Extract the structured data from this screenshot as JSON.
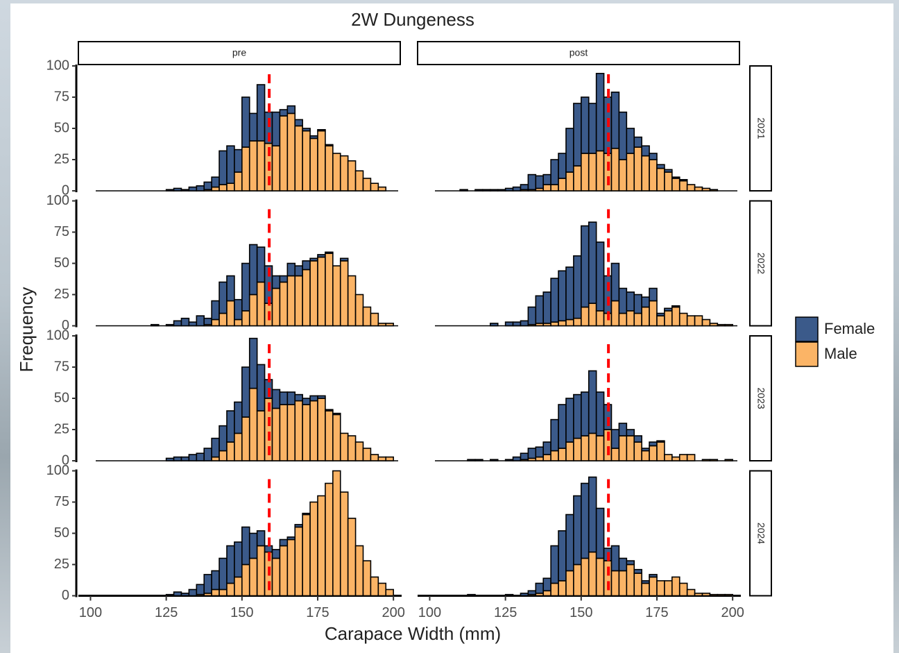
{
  "chart_data": {
    "type": "histogram",
    "title": "2W Dungeness",
    "x_label": "Carapace Width (mm)",
    "y_label": "Frequency",
    "bins": [
      100,
      102.5,
      105,
      107.5,
      110,
      112.5,
      115,
      117.5,
      120,
      122.5,
      125,
      127.5,
      130,
      132.5,
      135,
      137.5,
      140,
      142.5,
      145,
      147.5,
      150,
      152.5,
      155,
      157.5,
      160,
      162.5,
      165,
      167.5,
      170,
      172.5,
      175,
      177.5,
      180,
      182.5,
      185,
      187.5,
      190,
      192.5,
      195,
      197.5,
      200
    ],
    "xlim": [
      96,
      205
    ],
    "xticks": [
      100,
      125,
      150,
      175,
      200
    ],
    "ylim": [
      0,
      100
    ],
    "yticks": [
      0,
      25,
      50,
      75,
      100
    ],
    "series": [
      {
        "name": "Female",
        "color": "#3b5a8a"
      },
      {
        "name": "Male",
        "color": "#fbb466"
      }
    ],
    "legend": "right",
    "reference_line": {
      "value": 159,
      "color": "#ff0000"
    },
    "facet_columns": [
      "pre",
      "post"
    ],
    "facet_rows": [
      "2021",
      "2022",
      "2023",
      "2024"
    ],
    "panels": [
      [
        [
          [
            0,
            0,
            0,
            0,
            0,
            0,
            0,
            0,
            0,
            0,
            1,
            2,
            1,
            3,
            4,
            6,
            8,
            27,
            30,
            18,
            40,
            22,
            45,
            25,
            27,
            5,
            6,
            5,
            2,
            2,
            1,
            1,
            0,
            0,
            0,
            0,
            0,
            0,
            0,
            0
          ],
          [
            0,
            0,
            0,
            0,
            0,
            0,
            0,
            0,
            0,
            0,
            0,
            0,
            0,
            0,
            0,
            1,
            3,
            5,
            6,
            15,
            35,
            40,
            40,
            38,
            36,
            60,
            62,
            52,
            48,
            42,
            48,
            36,
            30,
            28,
            24,
            16,
            10,
            6,
            3,
            0
          ]
        ],
        [
          [
            0,
            0,
            0,
            0,
            1,
            0,
            1,
            1,
            1,
            1,
            2,
            3,
            4,
            12,
            10,
            8,
            20,
            20,
            35,
            50,
            45,
            40,
            62,
            45,
            45,
            38,
            20,
            8,
            8,
            5,
            3,
            2,
            1,
            1,
            0,
            0,
            0,
            0,
            0,
            0
          ],
          [
            0,
            0,
            0,
            0,
            0,
            0,
            0,
            0,
            0,
            0,
            0,
            0,
            1,
            1,
            2,
            5,
            5,
            10,
            15,
            20,
            30,
            30,
            32,
            30,
            34,
            25,
            30,
            35,
            28,
            25,
            18,
            15,
            10,
            8,
            5,
            3,
            2,
            1,
            0,
            0
          ]
        ]
      ],
      [
        [
          [
            0,
            0,
            0,
            0,
            0,
            0,
            0,
            0,
            1,
            0,
            1,
            4,
            6,
            3,
            8,
            5,
            15,
            25,
            20,
            16,
            38,
            40,
            28,
            30,
            10,
            5,
            10,
            8,
            7,
            2,
            2,
            1,
            0,
            2,
            0,
            0,
            0,
            0,
            0,
            0
          ],
          [
            0,
            0,
            0,
            0,
            0,
            0,
            0,
            0,
            0,
            0,
            0,
            0,
            0,
            0,
            0,
            1,
            5,
            10,
            20,
            5,
            12,
            25,
            35,
            18,
            30,
            35,
            40,
            40,
            45,
            52,
            55,
            58,
            48,
            52,
            40,
            25,
            15,
            10,
            2,
            2
          ]
        ],
        [
          [
            0,
            0,
            0,
            0,
            0,
            0,
            0,
            0,
            2,
            0,
            3,
            3,
            4,
            14,
            22,
            25,
            35,
            40,
            42,
            50,
            65,
            65,
            55,
            30,
            30,
            20,
            15,
            15,
            8,
            10,
            2,
            2,
            1,
            0,
            0,
            0,
            0,
            0,
            0,
            0
          ],
          [
            0,
            0,
            0,
            0,
            0,
            0,
            0,
            0,
            0,
            0,
            0,
            0,
            0,
            1,
            2,
            2,
            3,
            4,
            5,
            6,
            15,
            18,
            12,
            10,
            20,
            10,
            12,
            10,
            15,
            20,
            8,
            12,
            15,
            10,
            8,
            8,
            5,
            2,
            1,
            1
          ]
        ]
      ],
      [
        [
          [
            0,
            0,
            0,
            0,
            0,
            0,
            0,
            0,
            0,
            0,
            2,
            3,
            3,
            5,
            6,
            10,
            15,
            20,
            25,
            25,
            40,
            40,
            37,
            15,
            15,
            10,
            10,
            5,
            5,
            4,
            2,
            1,
            1,
            0,
            0,
            0,
            0,
            0,
            0,
            0
          ],
          [
            0,
            0,
            0,
            0,
            0,
            0,
            0,
            0,
            0,
            0,
            0,
            0,
            0,
            0,
            0,
            0,
            3,
            8,
            15,
            22,
            35,
            58,
            40,
            50,
            42,
            45,
            45,
            48,
            45,
            48,
            50,
            40,
            37,
            22,
            20,
            15,
            10,
            5,
            3,
            3
          ]
        ],
        [
          [
            0,
            0,
            0,
            0,
            0,
            1,
            1,
            0,
            1,
            0,
            1,
            3,
            5,
            8,
            8,
            10,
            25,
            35,
            35,
            35,
            35,
            50,
            35,
            20,
            15,
            10,
            5,
            5,
            2,
            3,
            1,
            0,
            0,
            0,
            0,
            0,
            0,
            0,
            0,
            0
          ],
          [
            0,
            0,
            0,
            0,
            0,
            0,
            0,
            0,
            0,
            0,
            0,
            0,
            1,
            2,
            3,
            5,
            8,
            10,
            15,
            18,
            20,
            22,
            20,
            25,
            10,
            20,
            20,
            15,
            8,
            12,
            15,
            5,
            3,
            5,
            5,
            0,
            1,
            1,
            0,
            1
          ]
        ]
      ],
      [
        [
          [
            0,
            0,
            0,
            0,
            0,
            0,
            0,
            0,
            0,
            0,
            1,
            3,
            2,
            5,
            8,
            15,
            15,
            25,
            30,
            28,
            30,
            20,
            12,
            5,
            7,
            5,
            2,
            2,
            1,
            0,
            0,
            0,
            0,
            0,
            0,
            0,
            0,
            0,
            0,
            0
          ],
          [
            0,
            0,
            0,
            0,
            0,
            0,
            0,
            0,
            0,
            0,
            0,
            0,
            0,
            0,
            1,
            2,
            5,
            5,
            10,
            15,
            25,
            30,
            40,
            35,
            30,
            40,
            45,
            55,
            65,
            75,
            80,
            90,
            100,
            83,
            62,
            40,
            28,
            15,
            10,
            5
          ]
        ],
        [
          [
            0,
            0,
            0,
            0,
            0,
            1,
            0,
            0,
            0,
            0,
            1,
            0,
            2,
            3,
            8,
            10,
            30,
            40,
            45,
            55,
            60,
            60,
            40,
            10,
            20,
            10,
            3,
            3,
            2,
            2,
            0,
            0,
            0,
            0,
            0,
            0,
            0,
            0,
            0,
            0
          ],
          [
            0,
            0,
            0,
            0,
            0,
            0,
            0,
            0,
            0,
            0,
            0,
            0,
            0,
            1,
            2,
            4,
            10,
            12,
            20,
            25,
            30,
            35,
            30,
            28,
            20,
            20,
            25,
            18,
            10,
            15,
            12,
            12,
            15,
            10,
            5,
            2,
            2,
            1,
            1,
            1
          ]
        ]
      ]
    ]
  }
}
